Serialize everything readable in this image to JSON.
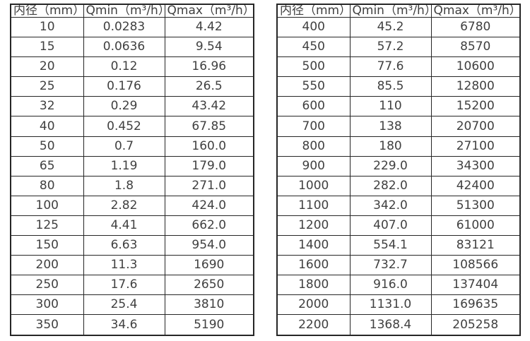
{
  "style": {
    "border_color": "#262626",
    "text_color": "#404040",
    "background": "#ffffff"
  },
  "tables": [
    {
      "name": "small-diameter-flow-table",
      "headers": [
        "内径（mm）",
        "Qmin（m³/h）",
        "Qmax（m³/h）"
      ],
      "rows": [
        [
          "10",
          "0.0283",
          "4.42"
        ],
        [
          "15",
          "0.0636",
          "9.54"
        ],
        [
          "20",
          "0.12",
          "16.96"
        ],
        [
          "25",
          "0.176",
          "26.5"
        ],
        [
          "32",
          "0.29",
          "43.42"
        ],
        [
          "40",
          "0.452",
          "67.85"
        ],
        [
          "50",
          "0.7",
          "160.0"
        ],
        [
          "65",
          "1.19",
          "179.0"
        ],
        [
          "80",
          "1.8",
          "271.0"
        ],
        [
          "100",
          "2.82",
          "424.0"
        ],
        [
          "125",
          "4.41",
          "662.0"
        ],
        [
          "150",
          "6.63",
          "954.0"
        ],
        [
          "200",
          "11.3",
          "1690"
        ],
        [
          "250",
          "17.6",
          "2650"
        ],
        [
          "300",
          "25.4",
          "3810"
        ],
        [
          "350",
          "34.6",
          "5190"
        ]
      ]
    },
    {
      "name": "large-diameter-flow-table",
      "headers": [
        "内径（mm）",
        "Qmin（m³/h）",
        "Qmax（m³/h）"
      ],
      "rows": [
        [
          "400",
          "45.2",
          "6780"
        ],
        [
          "450",
          "57.2",
          "8570"
        ],
        [
          "500",
          "77.6",
          "10600"
        ],
        [
          "550",
          "85.5",
          "12800"
        ],
        [
          "600",
          "110",
          "15200"
        ],
        [
          "700",
          "138",
          "20700"
        ],
        [
          "800",
          "180",
          "27100"
        ],
        [
          "900",
          "229.0",
          "34300"
        ],
        [
          "1000",
          "282.0",
          "42400"
        ],
        [
          "1100",
          "342.0",
          "51300"
        ],
        [
          "1200",
          "407.0",
          "61000"
        ],
        [
          "1400",
          "554.1",
          "83121"
        ],
        [
          "1600",
          "732.7",
          "108566"
        ],
        [
          "1800",
          "916.0",
          "137404"
        ],
        [
          "2000",
          "1131.0",
          "169635"
        ],
        [
          "2200",
          "1368.4",
          "205258"
        ]
      ]
    }
  ]
}
